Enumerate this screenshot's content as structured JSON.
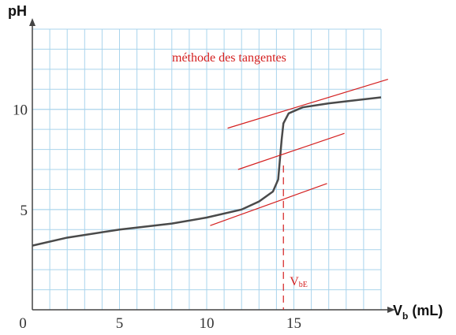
{
  "chart_data": {
    "type": "line",
    "y_label": "pH",
    "x_label": {
      "main": "V",
      "sub": "b",
      "rest": " (mL)"
    },
    "annotation": "méthode des tangentes",
    "equivalence_label": {
      "main": "V",
      "sub": "bE"
    },
    "x": [
      0,
      2,
      5,
      8,
      10,
      12,
      13,
      13.8,
      14.1,
      14.2,
      14.3,
      14.4,
      14.7,
      15.5,
      17,
      20
    ],
    "series": [
      {
        "color": "#4a4a4a",
        "values": [
          3.2,
          3.6,
          4.0,
          4.3,
          4.6,
          5.0,
          5.4,
          5.9,
          6.5,
          7.5,
          8.5,
          9.3,
          9.8,
          10.1,
          10.3,
          10.6
        ]
      }
    ],
    "tangents": [
      {
        "x": [
          11.2,
          20.4
        ],
        "y": [
          9.06,
          11.5
        ]
      },
      {
        "x": [
          11.8,
          17.9
        ],
        "y": [
          7.0,
          8.8
        ]
      },
      {
        "x": [
          10.2,
          16.9
        ],
        "y": [
          4.2,
          6.3
        ]
      }
    ],
    "equivalence_x": 14.4,
    "equivalence_top": 7.2,
    "annotation_color": "#d42020",
    "xlim": [
      0,
      20
    ],
    "ylim": [
      0,
      14
    ],
    "xticks": [
      0,
      5,
      10,
      15
    ],
    "yticks": [
      5,
      10
    ],
    "grid": true
  }
}
